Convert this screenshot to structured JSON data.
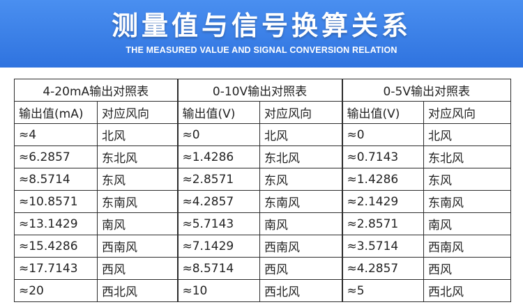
{
  "banner": {
    "title": "测量值与信号换算关系",
    "subtitle": "THE MEASURED VALUE AND SIGNAL CONVERSION RELATION",
    "color": "#3a7ee6"
  },
  "table": {
    "groups": [
      {
        "title": "4-20mA输出对照表",
        "col_value": "输出值(mA)",
        "col_dir": "对应风向",
        "values": [
          "≈4",
          "≈6.2857",
          "≈8.5714",
          "≈10.8571",
          "≈13.1429",
          "≈15.4286",
          "≈17.7143",
          "≈20"
        ]
      },
      {
        "title": "0-10V输出对照表",
        "col_value": "输出值(V)",
        "col_dir": "对应风向",
        "values": [
          "≈0",
          "≈1.4286",
          "≈2.8571",
          "≈4.2857",
          "≈5.7143",
          "≈7.1429",
          "≈8.5714",
          "≈10"
        ]
      },
      {
        "title": "0-5V输出对照表",
        "col_value": "输出值(V)",
        "col_dir": "对应风向",
        "values": [
          "≈0",
          "≈0.7143",
          "≈1.4286",
          "≈2.1429",
          "≈2.8571",
          "≈3.5714",
          "≈4.2857",
          "≈5"
        ]
      }
    ],
    "directions": [
      "北风",
      "东北风",
      "东风",
      "东南风",
      "南风",
      "西南风",
      "西风",
      "西北风"
    ]
  }
}
